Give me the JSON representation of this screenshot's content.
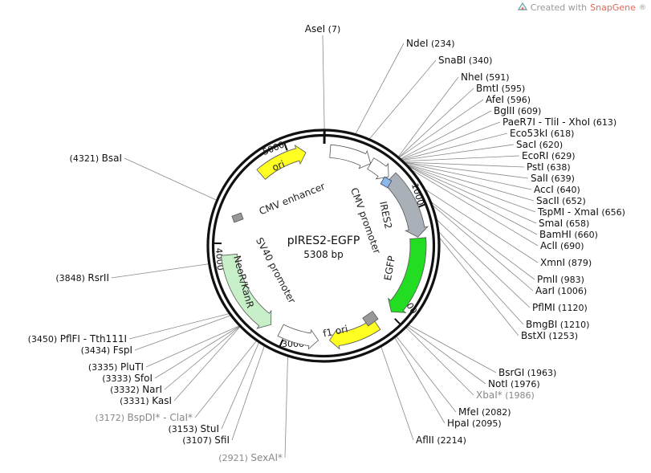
{
  "watermark": {
    "prefix": "Created with",
    "brand": "SnapGene",
    "mark": "®"
  },
  "plasmid": {
    "name": "pIRES2-EGFP",
    "length": "5308 bp",
    "total_bp": 5308
  },
  "ticks": [
    {
      "pos": 1000,
      "label": "1000"
    },
    {
      "pos": 2000,
      "label": "2000"
    },
    {
      "pos": 3000,
      "label": "3000"
    },
    {
      "pos": 4000,
      "label": "4000"
    },
    {
      "pos": 5000,
      "label": "5000"
    }
  ],
  "features": [
    {
      "name": "CMV enhancer",
      "start": 60,
      "end": 440,
      "color": "#ffffff",
      "strand": 1
    },
    {
      "name": "CMV promoter",
      "start": 440,
      "end": 640,
      "color": "#ffffff",
      "strand": 1
    },
    {
      "name": "IRES2",
      "start": 660,
      "end": 1250,
      "color": "#aab0b8",
      "strand": 1
    },
    {
      "name": "EGFP",
      "start": 1260,
      "end": 1980,
      "color": "#22dd22",
      "strand": 1
    },
    {
      "name": "f1 ori",
      "start": 2150,
      "end": 2600,
      "color": "#ffff22",
      "strand": 1
    },
    {
      "name": "SV40 promoter",
      "start": 2700,
      "end": 3050,
      "color": "#ffffff",
      "strand": -1
    },
    {
      "name": "NeoR/KanR",
      "start": 3150,
      "end": 3900,
      "color": "#c8f0c8",
      "strand": -1
    },
    {
      "name": "ori",
      "start": 4700,
      "end": 5150,
      "color": "#ffff22",
      "strand": 1
    }
  ],
  "enzymes": [
    {
      "name": "AseI",
      "pos_label": "(7)",
      "pos": 7,
      "side": "top"
    },
    {
      "name": "NdeI",
      "pos_label": "(234)",
      "pos": 234,
      "side": "right"
    },
    {
      "name": "SnaBI",
      "pos_label": "(340)",
      "pos": 340,
      "side": "right"
    },
    {
      "name": "NheI",
      "pos_label": "(591)",
      "pos": 591,
      "side": "right"
    },
    {
      "name": "BmtI",
      "pos_label": "(595)",
      "pos": 595,
      "side": "right"
    },
    {
      "name": "AfeI",
      "pos_label": "(596)",
      "pos": 596,
      "side": "right"
    },
    {
      "name": "BglII",
      "pos_label": "(609)",
      "pos": 609,
      "side": "right"
    },
    {
      "name": "PaeR7I - TliI - XhoI",
      "pos_label": "(613)",
      "pos": 613,
      "side": "right"
    },
    {
      "name": "Eco53kI",
      "pos_label": "(618)",
      "pos": 618,
      "side": "right"
    },
    {
      "name": "SacI",
      "pos_label": "(620)",
      "pos": 620,
      "side": "right"
    },
    {
      "name": "EcoRI",
      "pos_label": "(629)",
      "pos": 629,
      "side": "right"
    },
    {
      "name": "PstI",
      "pos_label": "(638)",
      "pos": 638,
      "side": "right"
    },
    {
      "name": "SalI",
      "pos_label": "(639)",
      "pos": 639,
      "side": "right"
    },
    {
      "name": "AccI",
      "pos_label": "(640)",
      "pos": 640,
      "side": "right"
    },
    {
      "name": "SacII",
      "pos_label": "(652)",
      "pos": 652,
      "side": "right"
    },
    {
      "name": "TspMI - XmaI",
      "pos_label": "(656)",
      "pos": 656,
      "side": "right"
    },
    {
      "name": "SmaI",
      "pos_label": "(658)",
      "pos": 658,
      "side": "right"
    },
    {
      "name": "BamHI",
      "pos_label": "(660)",
      "pos": 660,
      "side": "right"
    },
    {
      "name": "AclI",
      "pos_label": "(690)",
      "pos": 690,
      "side": "right"
    },
    {
      "name": "XmnI",
      "pos_label": "(879)",
      "pos": 879,
      "side": "right"
    },
    {
      "name": "PmlI",
      "pos_label": "(983)",
      "pos": 983,
      "side": "right"
    },
    {
      "name": "AarI",
      "pos_label": "(1006)",
      "pos": 1006,
      "side": "right"
    },
    {
      "name": "PflMI",
      "pos_label": "(1120)",
      "pos": 1120,
      "side": "right"
    },
    {
      "name": "BmgBI",
      "pos_label": "(1210)",
      "pos": 1210,
      "side": "right"
    },
    {
      "name": "BstXI",
      "pos_label": "(1253)",
      "pos": 1253,
      "side": "right"
    },
    {
      "name": "BsrGI",
      "pos_label": "(1963)",
      "pos": 1963,
      "side": "right"
    },
    {
      "name": "NotI",
      "pos_label": "(1976)",
      "pos": 1976,
      "side": "right"
    },
    {
      "name": "XbaI*",
      "pos_label": "(1986)",
      "pos": 1986,
      "side": "right",
      "grey": true
    },
    {
      "name": "MfeI",
      "pos_label": "(2082)",
      "pos": 2082,
      "side": "right"
    },
    {
      "name": "HpaI",
      "pos_label": "(2095)",
      "pos": 2095,
      "side": "right"
    },
    {
      "name": "AflII",
      "pos_label": "(2214)",
      "pos": 2214,
      "side": "right"
    },
    {
      "name": "SexAI*",
      "pos_label": "(2921)",
      "pos": 2921,
      "side": "left",
      "grey": true
    },
    {
      "name": "SfiI",
      "pos_label": "(3107)",
      "pos": 3107,
      "side": "left"
    },
    {
      "name": "StuI",
      "pos_label": "(3153)",
      "pos": 3153,
      "side": "left"
    },
    {
      "name": "BspDI* - ClaI*",
      "pos_label": "(3172)",
      "pos": 3172,
      "side": "left",
      "grey": true
    },
    {
      "name": "KasI",
      "pos_label": "(3331)",
      "pos": 3331,
      "side": "left"
    },
    {
      "name": "NarI",
      "pos_label": "(3332)",
      "pos": 3332,
      "side": "left"
    },
    {
      "name": "SfoI",
      "pos_label": "(3333)",
      "pos": 3333,
      "side": "left"
    },
    {
      "name": "PluTI",
      "pos_label": "(3335)",
      "pos": 3335,
      "side": "left"
    },
    {
      "name": "FspI",
      "pos_label": "(3434)",
      "pos": 3434,
      "side": "left"
    },
    {
      "name": "PflFI - Tth111I",
      "pos_label": "(3450)",
      "pos": 3450,
      "side": "left"
    },
    {
      "name": "RsrII",
      "pos_label": "(3848)",
      "pos": 3848,
      "side": "left"
    },
    {
      "name": "BsaI",
      "pos_label": "(4321)",
      "pos": 4321,
      "side": "left"
    }
  ]
}
